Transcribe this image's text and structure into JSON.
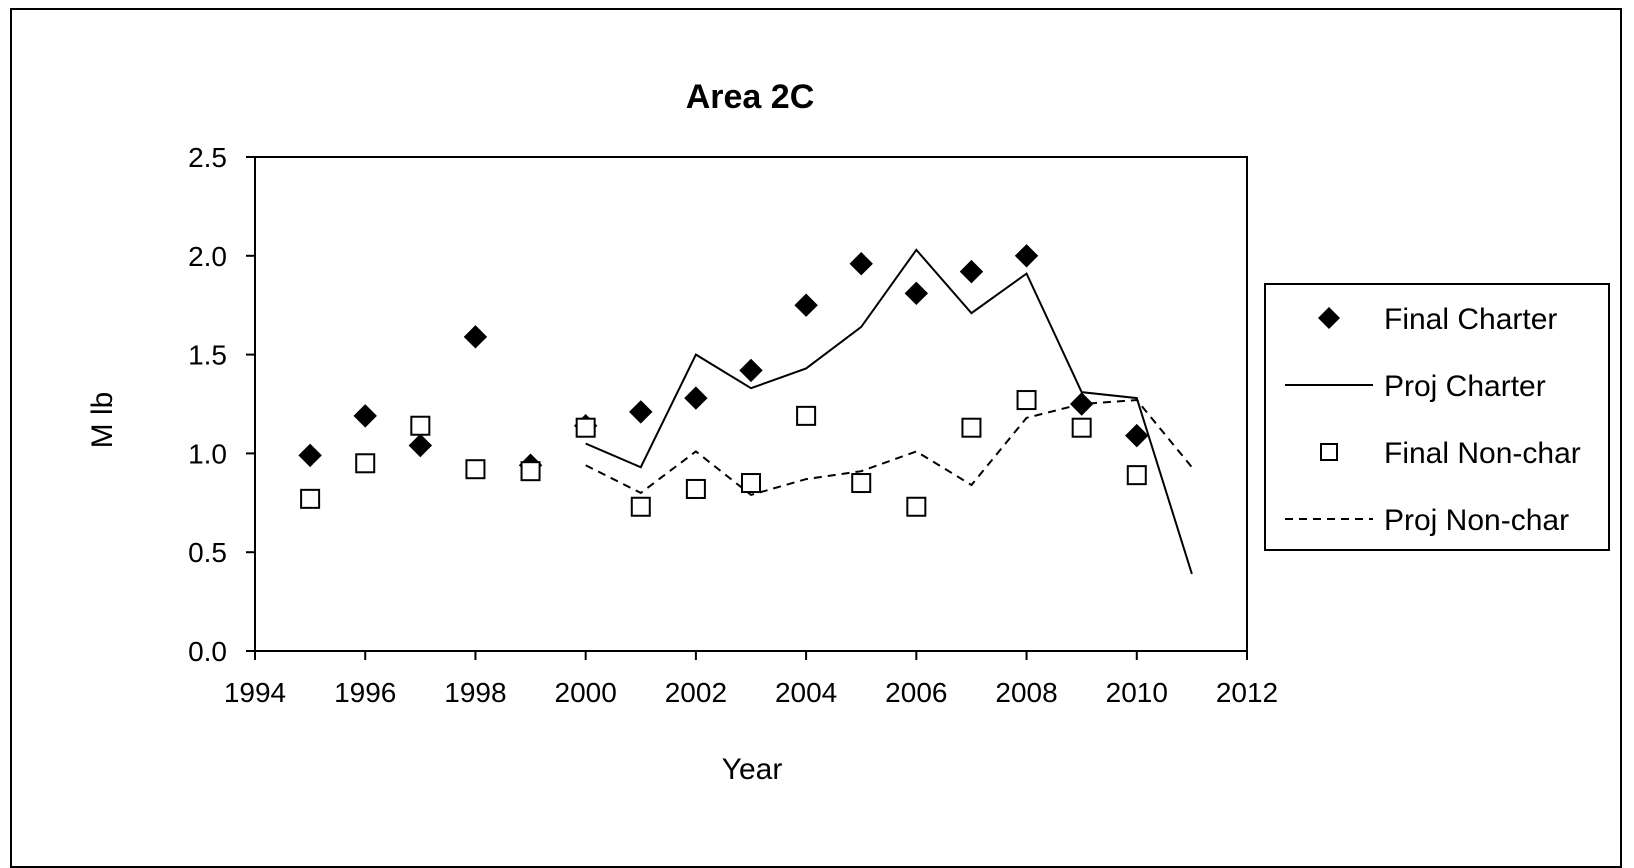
{
  "chart_data": {
    "type": "scatter",
    "title": "Area 2C",
    "xlabel": "Year",
    "ylabel": "M lb",
    "xlim": [
      1994,
      2012
    ],
    "ylim": [
      0,
      2.5
    ],
    "xticks": [
      1994,
      1996,
      1998,
      2000,
      2002,
      2004,
      2006,
      2008,
      2010,
      2012
    ],
    "yticks": [
      0.0,
      0.5,
      1.0,
      1.5,
      2.0,
      2.5
    ],
    "ytick_labels": [
      "0.0",
      "0.5",
      "1.0",
      "1.5",
      "2.0",
      "2.5"
    ],
    "grid": false,
    "legend_position": "right",
    "series": [
      {
        "name": "Final Charter",
        "style": "marker",
        "marker": "filled-diamond",
        "color": "#000000",
        "x": [
          1995,
          1996,
          1997,
          1998,
          1999,
          2000,
          2001,
          2002,
          2003,
          2004,
          2005,
          2006,
          2007,
          2008,
          2009,
          2010
        ],
        "y": [
          0.99,
          1.19,
          1.04,
          1.59,
          0.94,
          1.14,
          1.21,
          1.28,
          1.42,
          1.75,
          1.96,
          1.81,
          1.92,
          2.0,
          1.25,
          1.09
        ]
      },
      {
        "name": "Proj Charter",
        "style": "solid-line",
        "color": "#000000",
        "x": [
          2000,
          2001,
          2002,
          2003,
          2004,
          2005,
          2006,
          2007,
          2008,
          2009,
          2010,
          2011
        ],
        "y": [
          1.05,
          0.93,
          1.5,
          1.33,
          1.43,
          1.64,
          2.03,
          1.71,
          1.91,
          1.31,
          1.28,
          0.39
        ]
      },
      {
        "name": "Final Non-char",
        "style": "marker",
        "marker": "open-square",
        "color": "#000000",
        "x": [
          1995,
          1996,
          1997,
          1998,
          1999,
          2000,
          2001,
          2002,
          2003,
          2004,
          2005,
          2006,
          2007,
          2008,
          2009,
          2010
        ],
        "y": [
          0.77,
          0.95,
          1.14,
          0.92,
          0.91,
          1.13,
          0.73,
          0.82,
          0.85,
          1.19,
          0.85,
          0.73,
          1.13,
          1.27,
          1.13,
          0.89
        ]
      },
      {
        "name": "Proj Non-char",
        "style": "dashed-line",
        "color": "#000000",
        "x": [
          2000,
          2001,
          2002,
          2003,
          2004,
          2005,
          2006,
          2007,
          2008,
          2009,
          2010,
          2011
        ],
        "y": [
          0.94,
          0.8,
          1.01,
          0.79,
          0.87,
          0.91,
          1.01,
          0.84,
          1.18,
          1.25,
          1.27,
          0.93
        ]
      }
    ]
  }
}
